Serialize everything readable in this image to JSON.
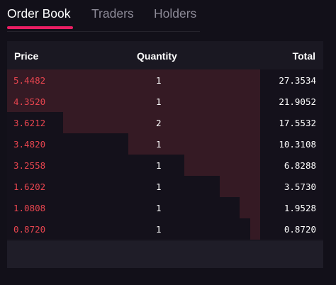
{
  "tabs": [
    {
      "label": "Order Book",
      "active": true
    },
    {
      "label": "Traders",
      "active": false
    },
    {
      "label": "Holders",
      "active": false
    }
  ],
  "table": {
    "headers": {
      "price": "Price",
      "quantity": "Quantity",
      "total": "Total"
    },
    "rows": [
      {
        "price": "5.4482",
        "quantity": "1",
        "total": "27.3534",
        "depth": 1.0
      },
      {
        "price": "4.3520",
        "quantity": "1",
        "total": "21.9052",
        "depth": 1.0
      },
      {
        "price": "3.6212",
        "quantity": "2",
        "total": "17.5532",
        "depth": 0.78
      },
      {
        "price": "3.4820",
        "quantity": "1",
        "total": "10.3108",
        "depth": 0.52
      },
      {
        "price": "3.2558",
        "quantity": "1",
        "total": "6.8288",
        "depth": 0.3
      },
      {
        "price": "1.6202",
        "quantity": "1",
        "total": "3.5730",
        "depth": 0.16
      },
      {
        "price": "1.0808",
        "quantity": "1",
        "total": "1.9528",
        "depth": 0.08
      },
      {
        "price": "0.8720",
        "quantity": "1",
        "total": "0.8720",
        "depth": 0.04
      }
    ]
  },
  "colors": {
    "accent": "#e91e63",
    "sell_price": "#e8454f",
    "depth_bar": "#351a24",
    "background": "#121019"
  }
}
